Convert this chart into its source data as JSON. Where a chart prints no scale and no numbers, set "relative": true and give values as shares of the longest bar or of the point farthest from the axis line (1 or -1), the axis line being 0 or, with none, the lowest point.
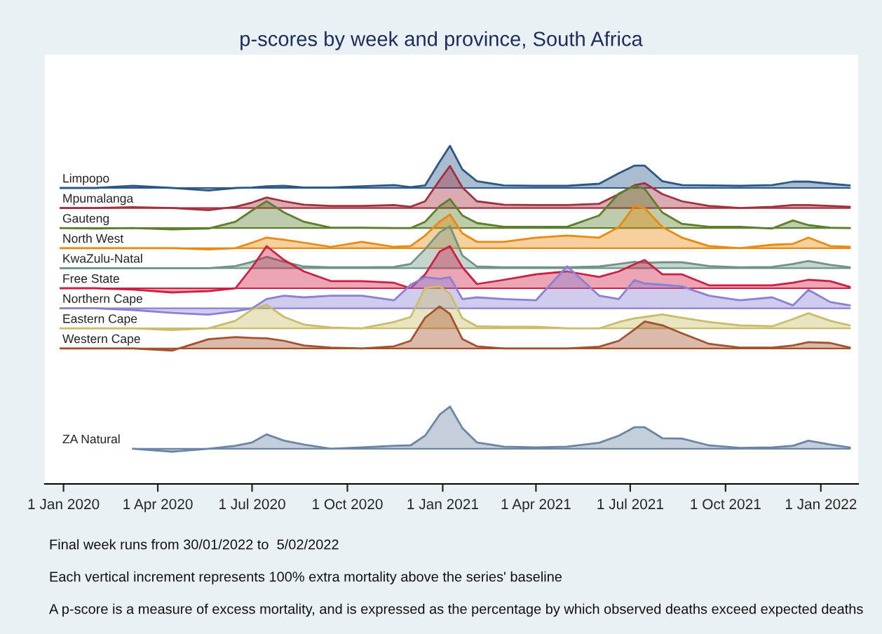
{
  "chart_data": [
    {
      "type": "area",
      "relative": true,
      "tick_labels": false,
      "title": "p-scores by week and province, South Africa",
      "x": [
        "2019-12-29",
        "2020-02-01",
        "2020-03-08",
        "2020-04-15",
        "2020-05-20",
        "2020-06-15",
        "2020-07-01",
        "2020-07-15",
        "2020-08-01",
        "2020-08-20",
        "2020-09-15",
        "2020-10-15",
        "2020-11-15",
        "2020-12-01",
        "2020-12-15",
        "2020-12-29",
        "2021-01-08",
        "2021-01-20",
        "2021-02-03",
        "2021-03-01",
        "2021-04-01",
        "2021-05-01",
        "2021-06-01",
        "2021-06-20",
        "2021-07-05",
        "2021-07-15",
        "2021-08-01",
        "2021-08-20",
        "2021-09-15",
        "2021-10-15",
        "2021-11-15",
        "2021-12-05",
        "2021-12-20",
        "2022-01-10",
        "2022-01-29"
      ],
      "xlim": [
        "2019-12-14",
        "2022-02-06"
      ],
      "series": [
        {
          "name": "Limpopo",
          "color": "#2b5887",
          "values": [
            0,
            0,
            0.05,
            0,
            -0.06,
            0,
            0.01,
            0.04,
            0.05,
            0.01,
            0.01,
            0.04,
            0.07,
            0.02,
            0.06,
            0.62,
            1,
            0.44,
            0.16,
            0.06,
            0.05,
            0.05,
            0.1,
            0.35,
            0.53,
            0.53,
            0.16,
            0.07,
            0.06,
            0.05,
            0.07,
            0.15,
            0.15,
            0.1,
            0.06
          ]
        }
      ]
    },
    {
      "type": "area",
      "relative": true,
      "tick_labels": false,
      "x": [
        "2019-12-29",
        "2020-02-01",
        "2020-03-08",
        "2020-04-15",
        "2020-05-20",
        "2020-06-15",
        "2020-07-01",
        "2020-07-15",
        "2020-08-01",
        "2020-08-20",
        "2020-09-15",
        "2020-10-15",
        "2020-11-15",
        "2020-12-01",
        "2020-12-15",
        "2020-12-29",
        "2021-01-08",
        "2021-01-20",
        "2021-02-03",
        "2021-03-01",
        "2021-04-01",
        "2021-05-01",
        "2021-06-01",
        "2021-06-20",
        "2021-07-05",
        "2021-07-15",
        "2021-08-01",
        "2021-08-20",
        "2021-09-15",
        "2021-10-15",
        "2021-11-15",
        "2021-12-05",
        "2021-12-20",
        "2022-01-10",
        "2022-01-29"
      ],
      "xlim": [
        "2019-12-14",
        "2022-02-06"
      ],
      "series": [
        {
          "name": "Mpumalanga",
          "color": "#a3303f",
          "values": [
            0,
            0,
            0.02,
            0,
            -0.05,
            0.03,
            0.13,
            0.25,
            0.16,
            0.08,
            0.05,
            0.05,
            0.07,
            0.03,
            0.16,
            0.66,
            1,
            0.49,
            0.16,
            0.08,
            0.07,
            0.07,
            0.1,
            0.33,
            0.54,
            0.59,
            0.33,
            0.16,
            0.05,
            0,
            0.03,
            0.07,
            0.07,
            0.05,
            0.03
          ]
        }
      ]
    },
    {
      "type": "area",
      "relative": true,
      "tick_labels": false,
      "x": [
        "2019-12-29",
        "2020-02-01",
        "2020-03-08",
        "2020-04-15",
        "2020-05-20",
        "2020-06-15",
        "2020-07-01",
        "2020-07-15",
        "2020-08-01",
        "2020-08-20",
        "2020-09-15",
        "2020-10-15",
        "2020-11-15",
        "2020-12-01",
        "2020-12-15",
        "2020-12-29",
        "2021-01-08",
        "2021-01-20",
        "2021-02-03",
        "2021-03-01",
        "2021-04-01",
        "2021-05-01",
        "2021-06-01",
        "2021-06-20",
        "2021-07-05",
        "2021-07-15",
        "2021-08-01",
        "2021-08-20",
        "2021-09-15",
        "2021-10-15",
        "2021-11-15",
        "2021-12-05",
        "2021-12-20",
        "2022-01-10",
        "2022-01-29"
      ],
      "xlim": [
        "2019-12-14",
        "2022-02-06"
      ],
      "series": [
        {
          "name": "Gauteng",
          "color": "#5c7f2e",
          "values": [
            0,
            -0.01,
            0,
            -0.03,
            -0.01,
            0.15,
            0.42,
            0.64,
            0.37,
            0.15,
            0.01,
            0.01,
            0,
            0,
            0.15,
            0.52,
            0.69,
            0.3,
            0.12,
            0.03,
            0.03,
            0.03,
            0.3,
            0.82,
            1,
            0.93,
            0.37,
            0.1,
            0.03,
            0.03,
            -0.01,
            0.18,
            0.07,
            0.01,
            0
          ]
        }
      ]
    },
    {
      "type": "area",
      "relative": true,
      "tick_labels": false,
      "x": [
        "2019-12-29",
        "2020-02-01",
        "2020-03-08",
        "2020-04-15",
        "2020-05-20",
        "2020-06-15",
        "2020-07-01",
        "2020-07-15",
        "2020-08-01",
        "2020-08-20",
        "2020-09-15",
        "2020-10-15",
        "2020-11-15",
        "2020-12-01",
        "2020-12-15",
        "2020-12-29",
        "2021-01-08",
        "2021-01-20",
        "2021-02-03",
        "2021-03-01",
        "2021-04-01",
        "2021-05-01",
        "2021-06-01",
        "2021-06-20",
        "2021-07-05",
        "2021-07-15",
        "2021-08-01",
        "2021-08-20",
        "2021-09-15",
        "2021-10-15",
        "2021-11-15",
        "2021-12-05",
        "2021-12-20",
        "2022-01-10",
        "2022-01-29"
      ],
      "xlim": [
        "2019-12-14",
        "2022-02-06"
      ],
      "series": [
        {
          "name": "North West",
          "color": "#e88a10",
          "values": [
            0,
            0,
            0,
            0,
            -0.03,
            0,
            0.13,
            0.25,
            0.2,
            0.13,
            0.03,
            0.15,
            0.03,
            0.05,
            0.3,
            0.63,
            0.8,
            0.35,
            0.15,
            0.15,
            0.25,
            0.3,
            0.25,
            0.5,
            1,
            0.95,
            0.5,
            0.25,
            0.05,
            0,
            0.08,
            0.1,
            0.25,
            0.05,
            0.03
          ]
        }
      ]
    },
    {
      "type": "area",
      "relative": true,
      "tick_labels": false,
      "x": [
        "2019-12-29",
        "2020-02-01",
        "2020-03-08",
        "2020-04-15",
        "2020-05-20",
        "2020-06-15",
        "2020-07-01",
        "2020-07-15",
        "2020-08-01",
        "2020-08-20",
        "2020-09-15",
        "2020-10-15",
        "2020-11-15",
        "2020-12-01",
        "2020-12-15",
        "2020-12-29",
        "2021-01-08",
        "2021-01-20",
        "2021-02-03",
        "2021-03-01",
        "2021-04-01",
        "2021-05-01",
        "2021-06-01",
        "2021-06-20",
        "2021-07-05",
        "2021-07-15",
        "2021-08-01",
        "2021-08-20",
        "2021-09-15",
        "2021-10-15",
        "2021-11-15",
        "2021-12-05",
        "2021-12-20",
        "2022-01-10",
        "2022-01-29"
      ],
      "xlim": [
        "2019-12-14",
        "2022-02-06"
      ],
      "series": [
        {
          "name": "KwaZulu-Natal",
          "color": "#6f9487",
          "values": [
            0,
            0,
            0,
            0,
            0,
            0.05,
            0.15,
            0.27,
            0.15,
            0.04,
            0.02,
            0.02,
            0.03,
            0.1,
            0.45,
            0.85,
            1,
            0.3,
            0.04,
            0.02,
            0.02,
            0.02,
            0.04,
            0.1,
            0.15,
            0.13,
            0.14,
            0.14,
            0.05,
            0.02,
            0.03,
            0.1,
            0.17,
            0.08,
            0.02
          ]
        }
      ]
    },
    {
      "type": "area",
      "relative": true,
      "tick_labels": false,
      "x": [
        "2019-12-29",
        "2020-02-01",
        "2020-03-08",
        "2020-04-15",
        "2020-05-20",
        "2020-06-15",
        "2020-07-01",
        "2020-07-15",
        "2020-08-01",
        "2020-08-20",
        "2020-09-15",
        "2020-10-15",
        "2020-11-15",
        "2020-12-01",
        "2020-12-15",
        "2020-12-29",
        "2021-01-08",
        "2021-01-20",
        "2021-02-03",
        "2021-03-01",
        "2021-04-01",
        "2021-05-01",
        "2021-06-01",
        "2021-06-20",
        "2021-07-05",
        "2021-07-15",
        "2021-08-01",
        "2021-08-20",
        "2021-09-15",
        "2021-10-15",
        "2021-11-15",
        "2021-12-05",
        "2021-12-20",
        "2022-01-10",
        "2022-01-29"
      ],
      "xlim": [
        "2019-12-14",
        "2022-02-06"
      ],
      "series": [
        {
          "name": "Free State",
          "color": "#cc1f43",
          "values": [
            0,
            0,
            -0.03,
            -0.1,
            -0.07,
            0,
            0.5,
            1,
            0.67,
            0.4,
            0.17,
            0.17,
            0.13,
            0,
            0.33,
            0.87,
            1,
            0.5,
            0.1,
            0.2,
            0.33,
            0.4,
            0.27,
            0.4,
            0.57,
            0.67,
            0.33,
            0.33,
            0.07,
            0.07,
            0.07,
            0.13,
            0.2,
            0.17,
            0.03
          ]
        }
      ]
    },
    {
      "type": "area",
      "relative": true,
      "tick_labels": false,
      "x": [
        "2019-12-29",
        "2020-02-01",
        "2020-03-08",
        "2020-04-15",
        "2020-05-20",
        "2020-06-15",
        "2020-07-01",
        "2020-07-15",
        "2020-08-01",
        "2020-08-20",
        "2020-09-15",
        "2020-10-15",
        "2020-11-15",
        "2020-12-01",
        "2020-12-15",
        "2020-12-29",
        "2021-01-08",
        "2021-01-20",
        "2021-02-03",
        "2021-03-01",
        "2021-04-01",
        "2021-05-01",
        "2021-06-01",
        "2021-06-20",
        "2021-07-05",
        "2021-07-15",
        "2021-08-01",
        "2021-08-20",
        "2021-09-15",
        "2021-10-15",
        "2021-11-15",
        "2021-12-05",
        "2021-12-20",
        "2022-01-10",
        "2022-01-29"
      ],
      "xlim": [
        "2019-12-14",
        "2022-02-06"
      ],
      "series": [
        {
          "name": "Northern Cape",
          "color": "#8a80d4",
          "values": [
            0,
            0,
            -0.04,
            -0.11,
            -0.15,
            -0.07,
            0,
            0.22,
            0.3,
            0.26,
            0.3,
            0.3,
            0.19,
            0.56,
            0.74,
            0.7,
            0.74,
            0.22,
            0.26,
            0.22,
            0.19,
            1,
            0.3,
            0.22,
            0.67,
            0.59,
            0.56,
            0.52,
            0.3,
            0.19,
            0.26,
            0.07,
            0.44,
            0.15,
            0.07
          ]
        }
      ]
    },
    {
      "type": "area",
      "relative": true,
      "tick_labels": false,
      "x": [
        "2019-12-29",
        "2020-02-01",
        "2020-03-08",
        "2020-04-15",
        "2020-05-20",
        "2020-06-15",
        "2020-07-01",
        "2020-07-15",
        "2020-08-01",
        "2020-08-20",
        "2020-09-15",
        "2020-10-15",
        "2020-11-15",
        "2020-12-01",
        "2020-12-15",
        "2020-12-29",
        "2021-01-08",
        "2021-01-20",
        "2021-02-03",
        "2021-03-01",
        "2021-04-01",
        "2021-05-01",
        "2021-06-01",
        "2021-06-20",
        "2021-07-05",
        "2021-07-15",
        "2021-08-01",
        "2021-08-20",
        "2021-09-15",
        "2021-10-15",
        "2021-11-15",
        "2021-12-05",
        "2021-12-20",
        "2022-01-10",
        "2022-01-29"
      ],
      "xlim": [
        "2019-12-14",
        "2022-02-06"
      ],
      "series": [
        {
          "name": "Eastern Cape",
          "color": "#c9bd6a",
          "values": [
            0,
            0,
            0,
            -0.04,
            0,
            0.18,
            0.45,
            0.56,
            0.27,
            0.09,
            0.02,
            0,
            0.15,
            0.27,
            0.96,
            1,
            0.82,
            0.24,
            0.05,
            0.04,
            0.04,
            0,
            0,
            0.15,
            0.24,
            0.27,
            0.33,
            0.25,
            0.15,
            0.07,
            0.05,
            0.22,
            0.36,
            0.18,
            0.07
          ]
        }
      ]
    },
    {
      "type": "area",
      "relative": true,
      "tick_labels": false,
      "x": [
        "2019-12-29",
        "2020-02-01",
        "2020-03-08",
        "2020-04-15",
        "2020-05-20",
        "2020-06-15",
        "2020-07-01",
        "2020-07-15",
        "2020-08-01",
        "2020-08-20",
        "2020-09-15",
        "2020-10-15",
        "2020-11-15",
        "2020-12-01",
        "2020-12-15",
        "2020-12-29",
        "2021-01-08",
        "2021-01-20",
        "2021-02-03",
        "2021-03-01",
        "2021-04-01",
        "2021-05-01",
        "2021-06-01",
        "2021-06-20",
        "2021-07-05",
        "2021-07-15",
        "2021-08-01",
        "2021-08-20",
        "2021-09-15",
        "2021-10-15",
        "2021-11-15",
        "2021-12-05",
        "2021-12-20",
        "2022-01-10",
        "2022-01-29"
      ],
      "xlim": [
        "2019-12-14",
        "2022-02-06"
      ],
      "series": [
        {
          "name": "Western Cape",
          "color": "#a4522e",
          "values": [
            0,
            0,
            0,
            -0.05,
            0.22,
            0.27,
            0.25,
            0.24,
            0.18,
            0.07,
            0.02,
            0,
            0.05,
            0.18,
            0.73,
            1,
            0.82,
            0.22,
            0.05,
            0,
            0,
            0,
            0.04,
            0.18,
            0.45,
            0.64,
            0.55,
            0.36,
            0.11,
            0.02,
            0.02,
            0.07,
            0.15,
            0.13,
            0.02
          ]
        }
      ]
    },
    {
      "type": "area",
      "relative": true,
      "tick_labels": "x",
      "annotations": [
        "Final week runs from 30/01/2022 to  5/02/2022",
        "Each vertical increment represents 100% extra mortality above the series' baseline",
        "A p-score is a measure of excess mortality, and is expressed as the percentage by which observed deaths exceed expected deaths"
      ],
      "xlim": [
        "2019-12-14",
        "2022-02-06"
      ],
      "xticks": [
        {
          "value": "2020-01-01",
          "label": "1 Jan 2020"
        },
        {
          "value": "2020-04-01",
          "label": "1 Apr 2020"
        },
        {
          "value": "2020-07-01",
          "label": "1 Jul 2020"
        },
        {
          "value": "2020-10-01",
          "label": "1 Oct 2020"
        },
        {
          "value": "2021-01-01",
          "label": "1 Jan 2021"
        },
        {
          "value": "2021-04-01",
          "label": "1 Apr 2021"
        },
        {
          "value": "2021-07-01",
          "label": "1 Jul 2021"
        },
        {
          "value": "2021-10-01",
          "label": "1 Oct 2021"
        },
        {
          "value": "2022-01-01",
          "label": "1 Jan 2022"
        }
      ],
      "series": [
        {
          "name": "ZA Natural",
          "color": "#6b86a5",
          "x": [
            "2020-03-08",
            "2020-04-15",
            "2020-05-20",
            "2020-06-15",
            "2020-07-01",
            "2020-07-15",
            "2020-08-01",
            "2020-08-20",
            "2020-09-15",
            "2020-10-15",
            "2020-11-15",
            "2020-12-01",
            "2020-12-15",
            "2020-12-29",
            "2021-01-08",
            "2021-01-20",
            "2021-02-03",
            "2021-03-01",
            "2021-04-01",
            "2021-05-01",
            "2021-06-01",
            "2021-06-20",
            "2021-07-05",
            "2021-07-15",
            "2021-08-01",
            "2021-08-20",
            "2021-09-15",
            "2021-10-15",
            "2021-11-15",
            "2021-12-05",
            "2021-12-20",
            "2022-01-10",
            "2022-01-29"
          ],
          "values": [
            0,
            -0.07,
            0,
            0.07,
            0.15,
            0.34,
            0.19,
            0.1,
            0,
            0.03,
            0.07,
            0.08,
            0.31,
            0.81,
            1,
            0.49,
            0.15,
            0.05,
            0.03,
            0.05,
            0.14,
            0.31,
            0.51,
            0.51,
            0.25,
            0.24,
            0.08,
            0.02,
            0.03,
            0.07,
            0.19,
            0.1,
            0.03
          ]
        }
      ]
    }
  ]
}
